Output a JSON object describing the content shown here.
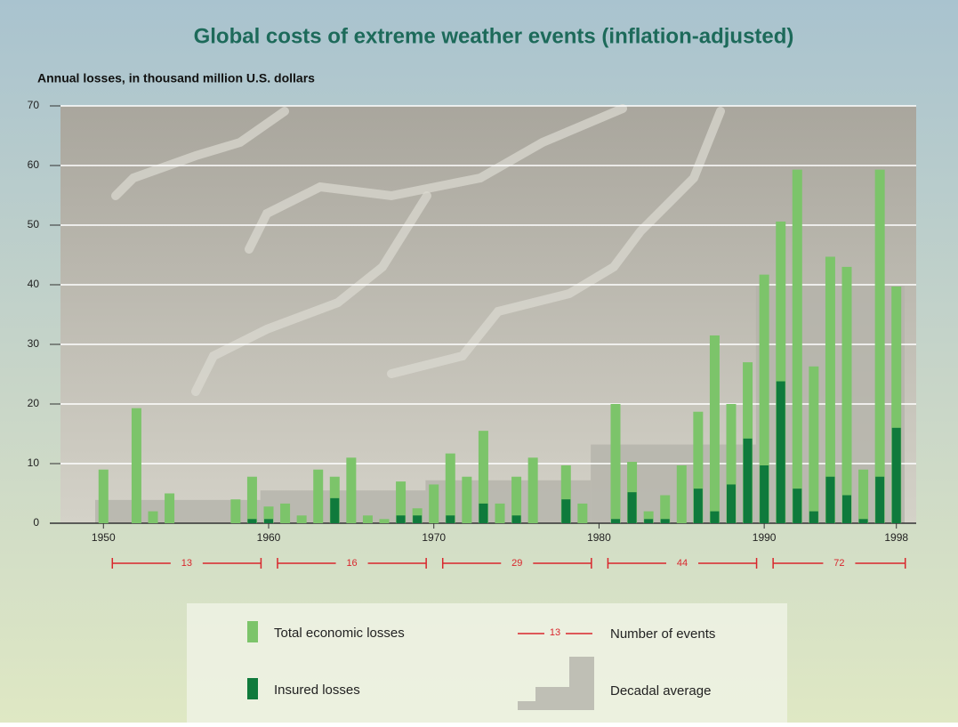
{
  "chart_data": {
    "type": "bar",
    "title": "Global costs of extreme weather events (inflation-adjusted)",
    "y_label": "Annual losses, in thousand million U.S. dollars",
    "x": [
      1950,
      1951,
      1952,
      1953,
      1954,
      1955,
      1956,
      1957,
      1958,
      1959,
      1960,
      1961,
      1962,
      1963,
      1964,
      1965,
      1966,
      1967,
      1968,
      1969,
      1970,
      1971,
      1972,
      1973,
      1974,
      1975,
      1976,
      1977,
      1978,
      1979,
      1980,
      1981,
      1982,
      1983,
      1984,
      1985,
      1986,
      1987,
      1988,
      1989,
      1990,
      1991,
      1992,
      1993,
      1994,
      1995,
      1996,
      1997,
      1998
    ],
    "series": [
      {
        "name": "Total economic losses",
        "color": "#7cc46a",
        "values": [
          9,
          0,
          19.3,
          2,
          5,
          0,
          0,
          0,
          4,
          7.8,
          2.8,
          3.3,
          1.3,
          9,
          7.8,
          11,
          1.3,
          0.7,
          7,
          2.5,
          6.5,
          11.7,
          7.8,
          15.5,
          3.3,
          7.8,
          11,
          0,
          9.7,
          3.3,
          0,
          20,
          10.3,
          2,
          4.7,
          9.7,
          18.7,
          31.5,
          20,
          27,
          41.7,
          50.6,
          59.3,
          26.3,
          44.7,
          43,
          9,
          59.3,
          39.7
        ]
      },
      {
        "name": "Insured losses",
        "color": "#0f7a3c",
        "values": [
          0,
          0,
          0,
          0,
          0,
          0,
          0,
          0,
          0,
          0.7,
          0.7,
          0,
          0,
          0,
          4.2,
          0,
          0,
          0,
          1.3,
          1.3,
          0,
          1.3,
          0,
          3.3,
          0,
          1.3,
          0,
          0,
          4,
          0,
          0,
          0.7,
          5.2,
          0.7,
          0.7,
          0,
          5.8,
          2,
          6.5,
          14.2,
          9.7,
          23.8,
          5.8,
          2,
          7.8,
          4.7,
          0.7,
          7.8,
          16
        ]
      }
    ],
    "decadal_average": {
      "name": "Decadal average",
      "color": "#b4b3aa",
      "decades": [
        [
          1950,
          1959
        ],
        [
          1960,
          1969
        ],
        [
          1970,
          1979
        ],
        [
          1980,
          1989
        ],
        [
          1990,
          1998
        ]
      ],
      "values": [
        3.9,
        5.5,
        7.2,
        13.2,
        39.8
      ]
    },
    "events": {
      "name": "Number of events",
      "color": "#d9262c",
      "counts": [
        13,
        16,
        29,
        44,
        72
      ]
    },
    "xlim": [
      1947.4,
      1999.2
    ],
    "xticks": [
      1950,
      1960,
      1970,
      1980,
      1990,
      1998
    ],
    "ylim": [
      0,
      70
    ],
    "yticks": [
      0,
      10,
      20,
      30,
      40,
      50,
      60,
      70
    ],
    "grid": true
  }
}
